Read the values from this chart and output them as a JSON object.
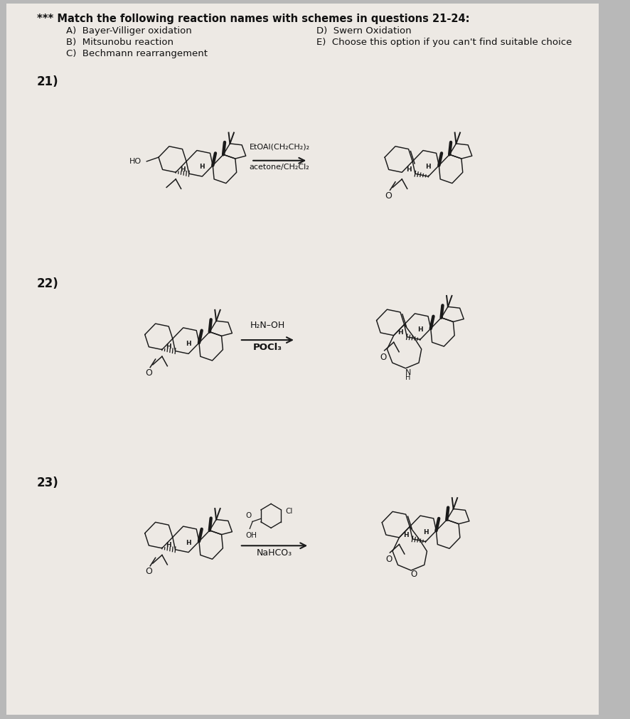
{
  "background_color": "#b8b8b8",
  "paper_color": "#ede9e4",
  "title_line": "*** Match the following reaction names with schemes in questions 21-24:",
  "opt_A": "A)  Bayer-Villiger oxidation",
  "opt_B": "B)  Mitsunobu reaction",
  "opt_C": "C)  Bechmann rearrangement",
  "opt_D": "D)  Swern Oxidation",
  "opt_E": "E)  Choose this option if you can't find suitable choice",
  "q21": "21)",
  "q22": "22)",
  "q23": "23)",
  "reagent_21_top": "EtOAl(CH₂CH₂)₂",
  "reagent_21_bot": "acetone/CH₂Cl₂",
  "reagent_22_top": "H₂N–OH",
  "reagent_22_bot": "POCl₃",
  "reagent_23_bot": "NaHCO₃",
  "color_mol": "#1a1a1a",
  "color_text": "#111111",
  "lw_thin": 1.0,
  "lw_med": 1.4,
  "lw_thick": 3.0
}
